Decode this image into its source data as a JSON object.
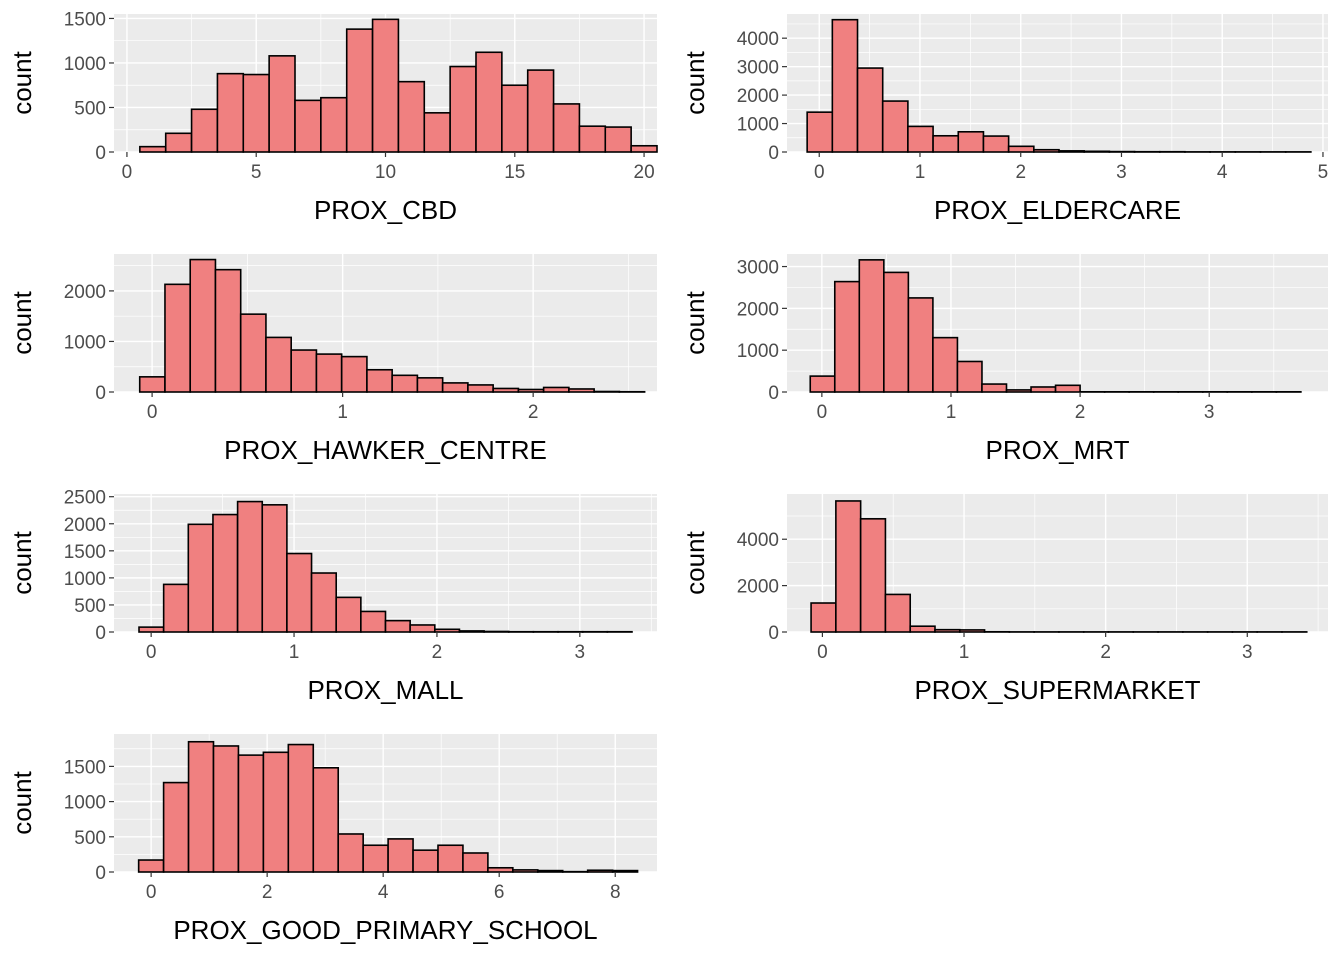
{
  "chart_data": [
    {
      "type": "bar",
      "histogram": true,
      "xlabel": "PROX_CBD",
      "ylabel": "count",
      "xlim": [
        -0.5,
        20.5
      ],
      "ylim": [
        0,
        1550
      ],
      "xticks": [
        0,
        5,
        10,
        15,
        20
      ],
      "yticks": [
        0,
        500,
        1000,
        1500
      ],
      "bin_start": 0.5,
      "bin_width": 1,
      "values": [
        60,
        210,
        480,
        880,
        870,
        1080,
        580,
        610,
        1380,
        1490,
        790,
        440,
        960,
        1120,
        750,
        920,
        540,
        290,
        280,
        70
      ],
      "grid": true
    },
    {
      "type": "bar",
      "histogram": true,
      "xlabel": "PROX_ELDERCARE",
      "ylabel": "count",
      "xlim": [
        -0.32,
        5.05
      ],
      "ylim": [
        0,
        4850
      ],
      "xticks": [
        0,
        1,
        2,
        3,
        4,
        5
      ],
      "yticks": [
        0,
        1000,
        2000,
        3000,
        4000
      ],
      "bin_start": -0.12,
      "bin_width": 0.25,
      "values": [
        1400,
        4650,
        2950,
        1790,
        900,
        570,
        710,
        560,
        200,
        80,
        40,
        25,
        15,
        10,
        10,
        5,
        5,
        5,
        5,
        5
      ],
      "grid": true
    },
    {
      "type": "bar",
      "histogram": true,
      "xlabel": "PROX_HAWKER_CENTRE",
      "ylabel": "count",
      "xlim": [
        -0.2,
        2.65
      ],
      "ylim": [
        0,
        2730
      ],
      "xticks": [
        0,
        1,
        2
      ],
      "yticks": [
        0,
        1000,
        2000
      ],
      "bin_start": -0.065,
      "bin_width": 0.1325,
      "values": [
        300,
        2130,
        2620,
        2420,
        1540,
        1080,
        830,
        750,
        700,
        440,
        330,
        280,
        180,
        140,
        70,
        50,
        90,
        60,
        10,
        5
      ],
      "grid": true
    },
    {
      "type": "bar",
      "histogram": true,
      "xlabel": "PROX_MRT",
      "ylabel": "count",
      "xlim": [
        -0.27,
        3.92
      ],
      "ylim": [
        0,
        3300
      ],
      "xticks": [
        0,
        1,
        2,
        3
      ],
      "yticks": [
        0,
        1000,
        2000,
        3000
      ],
      "bin_start": -0.09,
      "bin_width": 0.19,
      "values": [
        380,
        2640,
        3160,
        2860,
        2250,
        1300,
        730,
        190,
        50,
        120,
        160,
        5,
        5,
        5,
        5,
        5,
        5,
        5,
        5,
        5
      ],
      "grid": true
    },
    {
      "type": "bar",
      "histogram": true,
      "xlabel": "PROX_MALL",
      "ylabel": "count",
      "xlim": [
        -0.26,
        3.54
      ],
      "ylim": [
        0,
        2550
      ],
      "xticks": [
        0,
        1,
        2,
        3
      ],
      "yticks": [
        0,
        500,
        1000,
        1500,
        2000,
        2500
      ],
      "bin_start": -0.085,
      "bin_width": 0.1725,
      "values": [
        90,
        880,
        1990,
        2170,
        2410,
        2350,
        1450,
        1090,
        640,
        380,
        210,
        130,
        50,
        20,
        10,
        5,
        5,
        5,
        5,
        5
      ],
      "grid": true
    },
    {
      "type": "bar",
      "histogram": true,
      "xlabel": "PROX_SUPERMARKET",
      "ylabel": "count",
      "xlim": [
        -0.25,
        3.57
      ],
      "ylim": [
        0,
        5950
      ],
      "xticks": [
        0,
        1,
        2,
        3
      ],
      "yticks": [
        0,
        2000,
        4000
      ],
      "bin_start": -0.08,
      "bin_width": 0.175,
      "values": [
        1250,
        5650,
        4880,
        1620,
        250,
        100,
        90,
        10,
        5,
        5,
        5,
        5,
        5,
        5,
        5,
        5,
        5,
        5,
        5,
        5
      ],
      "grid": true
    },
    {
      "type": "bar",
      "histogram": true,
      "xlabel": "PROX_GOOD_PRIMARY_SCHOOL",
      "ylabel": "count",
      "xlim": [
        -0.64,
        8.72
      ],
      "ylim": [
        0,
        1960
      ],
      "xticks": [
        0,
        2,
        4,
        6,
        8
      ],
      "yticks": [
        0,
        500,
        1000,
        1500
      ],
      "bin_start": -0.215,
      "bin_width": 0.43,
      "values": [
        170,
        1270,
        1850,
        1790,
        1660,
        1700,
        1810,
        1480,
        540,
        380,
        470,
        310,
        380,
        270,
        60,
        30,
        20,
        5,
        25,
        20
      ],
      "grid": true
    }
  ]
}
